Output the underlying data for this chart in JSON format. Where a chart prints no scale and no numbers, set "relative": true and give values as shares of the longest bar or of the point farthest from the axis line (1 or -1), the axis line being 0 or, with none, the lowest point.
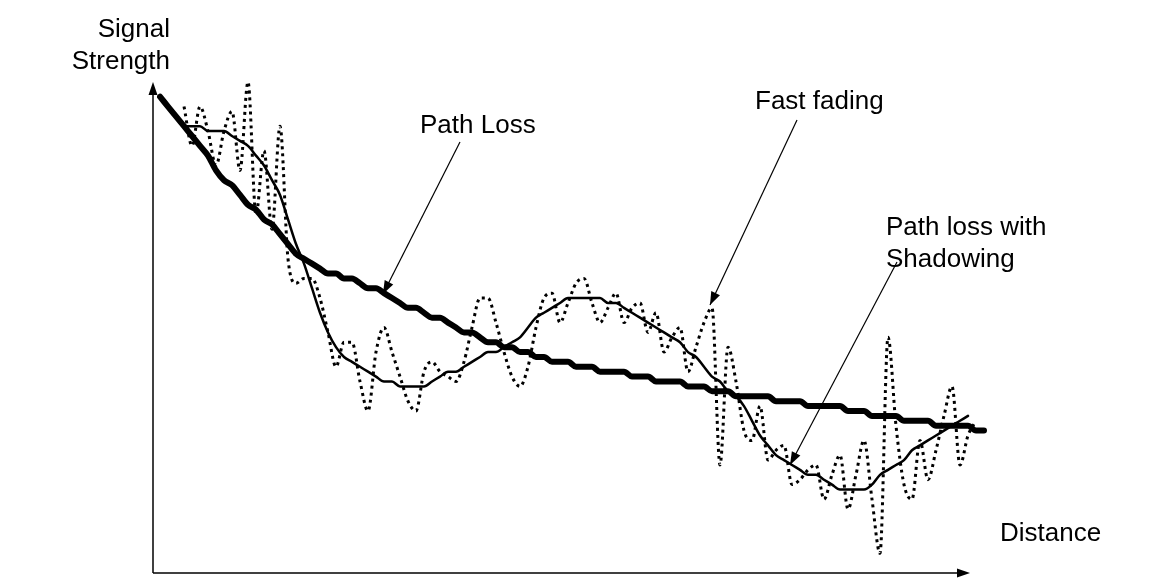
{
  "chart_data": {
    "type": "line",
    "relative": true,
    "marker": "none",
    "xlabel": "Distance",
    "ylabel": "Signal Strength",
    "annotations": [
      "Path Loss",
      "Fast fading",
      "Path loss with Shadowing"
    ],
    "categories": [
      null,
      null,
      null,
      null,
      null,
      null,
      null,
      null,
      null,
      null,
      null,
      null,
      null,
      null,
      null,
      null,
      null,
      null,
      null,
      null,
      null,
      null,
      null,
      null,
      null,
      null,
      null,
      null,
      null,
      null,
      null,
      null,
      null,
      null,
      null,
      null,
      null,
      null,
      null,
      null,
      null,
      null,
      null,
      null,
      null,
      null,
      null,
      null,
      null,
      null,
      null,
      null,
      null,
      null,
      null,
      null,
      null,
      null,
      null,
      null,
      null,
      null,
      null,
      null,
      null,
      null,
      null,
      null,
      null,
      null,
      null,
      null,
      null,
      null,
      null,
      null,
      null,
      null,
      null,
      null,
      null,
      null,
      null,
      null,
      null,
      null,
      null,
      null,
      null,
      null,
      null,
      null,
      null,
      null,
      null,
      null,
      null,
      null,
      null,
      null,
      null,
      null,
      null,
      null
    ],
    "series": [
      {
        "color": "#000000",
        "line_style": "solid",
        "values": [
          0.97,
          0.95,
          0.93,
          0.91,
          0.89,
          0.87,
          0.85,
          0.82,
          0.8,
          0.79,
          0.77,
          0.75,
          0.74,
          0.72,
          0.71,
          0.69,
          0.67,
          0.65,
          0.64,
          0.63,
          0.62,
          0.61,
          0.61,
          0.6,
          0.6,
          0.59,
          0.58,
          0.58,
          0.57,
          0.56,
          0.55,
          0.54,
          0.54,
          0.53,
          0.52,
          0.52,
          0.51,
          0.5,
          0.49,
          0.49,
          0.48,
          0.47,
          0.47,
          0.46,
          0.46,
          0.45,
          0.45,
          0.44,
          0.44,
          0.43,
          0.43,
          0.43,
          0.42,
          0.42,
          0.42,
          0.41,
          0.41,
          0.41,
          0.41,
          0.4,
          0.4,
          0.4,
          0.39,
          0.39,
          0.39,
          0.39,
          0.38,
          0.38,
          0.38,
          0.37,
          0.37,
          0.37,
          0.36,
          0.36,
          0.36,
          0.36,
          0.36,
          0.35,
          0.35,
          0.35,
          0.35,
          0.34,
          0.34,
          0.34,
          0.34,
          0.34,
          0.33,
          0.33,
          0.33,
          0.32,
          0.32,
          0.32,
          0.32,
          0.31,
          0.31,
          0.31,
          0.31,
          0.3,
          0.3,
          0.3,
          0.3,
          0.3,
          0.29,
          0.29
        ]
      },
      {
        "color": "#000000",
        "line_style": "dotted",
        "values": [
          null,
          null,
          null,
          0.95,
          0.87,
          0.95,
          0.9,
          0.83,
          0.9,
          0.94,
          0.82,
          1.0,
          0.73,
          0.86,
          0.7,
          0.91,
          0.64,
          0.59,
          0.6,
          0.6,
          0.56,
          0.49,
          0.42,
          0.47,
          0.47,
          0.39,
          0.33,
          0.45,
          0.5,
          0.45,
          0.4,
          0.35,
          0.33,
          0.41,
          0.43,
          0.41,
          0.4,
          0.39,
          0.43,
          0.5,
          0.56,
          0.56,
          0.51,
          0.45,
          0.4,
          0.38,
          0.42,
          0.5,
          0.56,
          0.57,
          0.51,
          0.55,
          0.59,
          0.6,
          0.55,
          0.51,
          0.54,
          0.57,
          0.51,
          0.54,
          0.55,
          0.49,
          0.53,
          0.45,
          0.48,
          0.5,
          0.41,
          0.46,
          0.51,
          0.54,
          0.22,
          0.46,
          0.39,
          0.29,
          0.27,
          0.34,
          0.23,
          0.25,
          0.26,
          0.18,
          0.19,
          0.21,
          0.22,
          0.15,
          0.2,
          0.24,
          0.13,
          0.2,
          0.27,
          0.15,
          0.04,
          0.48,
          0.3,
          0.18,
          0.15,
          0.27,
          0.19,
          0.25,
          0.32,
          0.38,
          0.22,
          0.28,
          0.31,
          null
        ]
      },
      {
        "color": "#000000",
        "line_style": "solid",
        "values": [
          null,
          null,
          null,
          0.91,
          0.91,
          0.91,
          0.9,
          0.9,
          0.9,
          0.89,
          0.88,
          0.87,
          0.85,
          0.83,
          0.8,
          0.77,
          0.72,
          0.67,
          0.63,
          0.58,
          0.53,
          0.49,
          0.46,
          0.44,
          0.43,
          0.42,
          0.41,
          0.4,
          0.39,
          0.39,
          0.38,
          0.38,
          0.38,
          0.38,
          0.39,
          0.4,
          0.41,
          0.41,
          0.42,
          0.43,
          0.44,
          0.45,
          0.45,
          0.46,
          0.47,
          0.48,
          0.5,
          0.52,
          0.53,
          0.54,
          0.55,
          0.56,
          0.56,
          0.56,
          0.56,
          0.56,
          0.55,
          0.55,
          0.54,
          0.53,
          0.52,
          0.51,
          0.5,
          0.49,
          0.48,
          0.47,
          0.45,
          0.44,
          0.42,
          0.4,
          0.39,
          0.37,
          0.36,
          0.34,
          0.31,
          0.28,
          0.26,
          0.24,
          0.23,
          0.22,
          0.21,
          0.2,
          0.2,
          0.19,
          0.18,
          0.17,
          0.17,
          0.17,
          0.17,
          0.18,
          0.2,
          0.21,
          0.22,
          0.23,
          0.25,
          0.26,
          0.27,
          0.28,
          0.29,
          0.3,
          0.31,
          0.32,
          null,
          null
        ]
      }
    ]
  }
}
